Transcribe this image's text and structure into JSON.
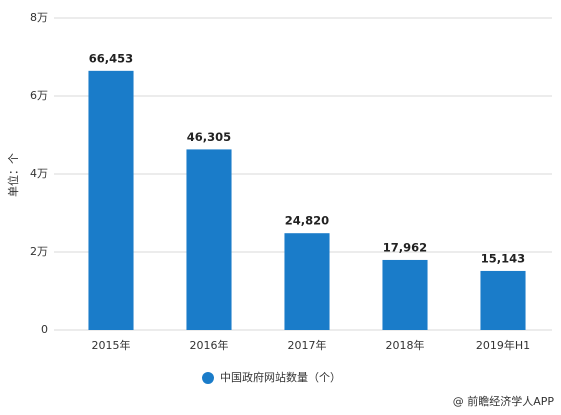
{
  "chart_data": {
    "type": "bar",
    "y_label": "单位：个",
    "categories": [
      "2015年",
      "2016年",
      "2017年",
      "2018年",
      "2019年H1"
    ],
    "series": [
      {
        "name": "中国政府网站数量（个）",
        "color": "#1a7cc9",
        "values": [
          66453,
          46305,
          24820,
          17962,
          15143
        ],
        "value_labels": [
          "66,453",
          "46,305",
          "24,820",
          "17,962",
          "15,143"
        ]
      }
    ],
    "ylim": [
      0,
      80000
    ],
    "yticks": [
      0,
      {
        "value": 20000,
        "label": "2万"
      },
      {
        "value": 40000,
        "label": "4万"
      },
      {
        "value": 60000,
        "label": "6万"
      },
      {
        "value": 80000,
        "label": "8万"
      }
    ],
    "grid": true,
    "legend": "bottom",
    "footer": "@ 前瞻经济学人APP"
  }
}
